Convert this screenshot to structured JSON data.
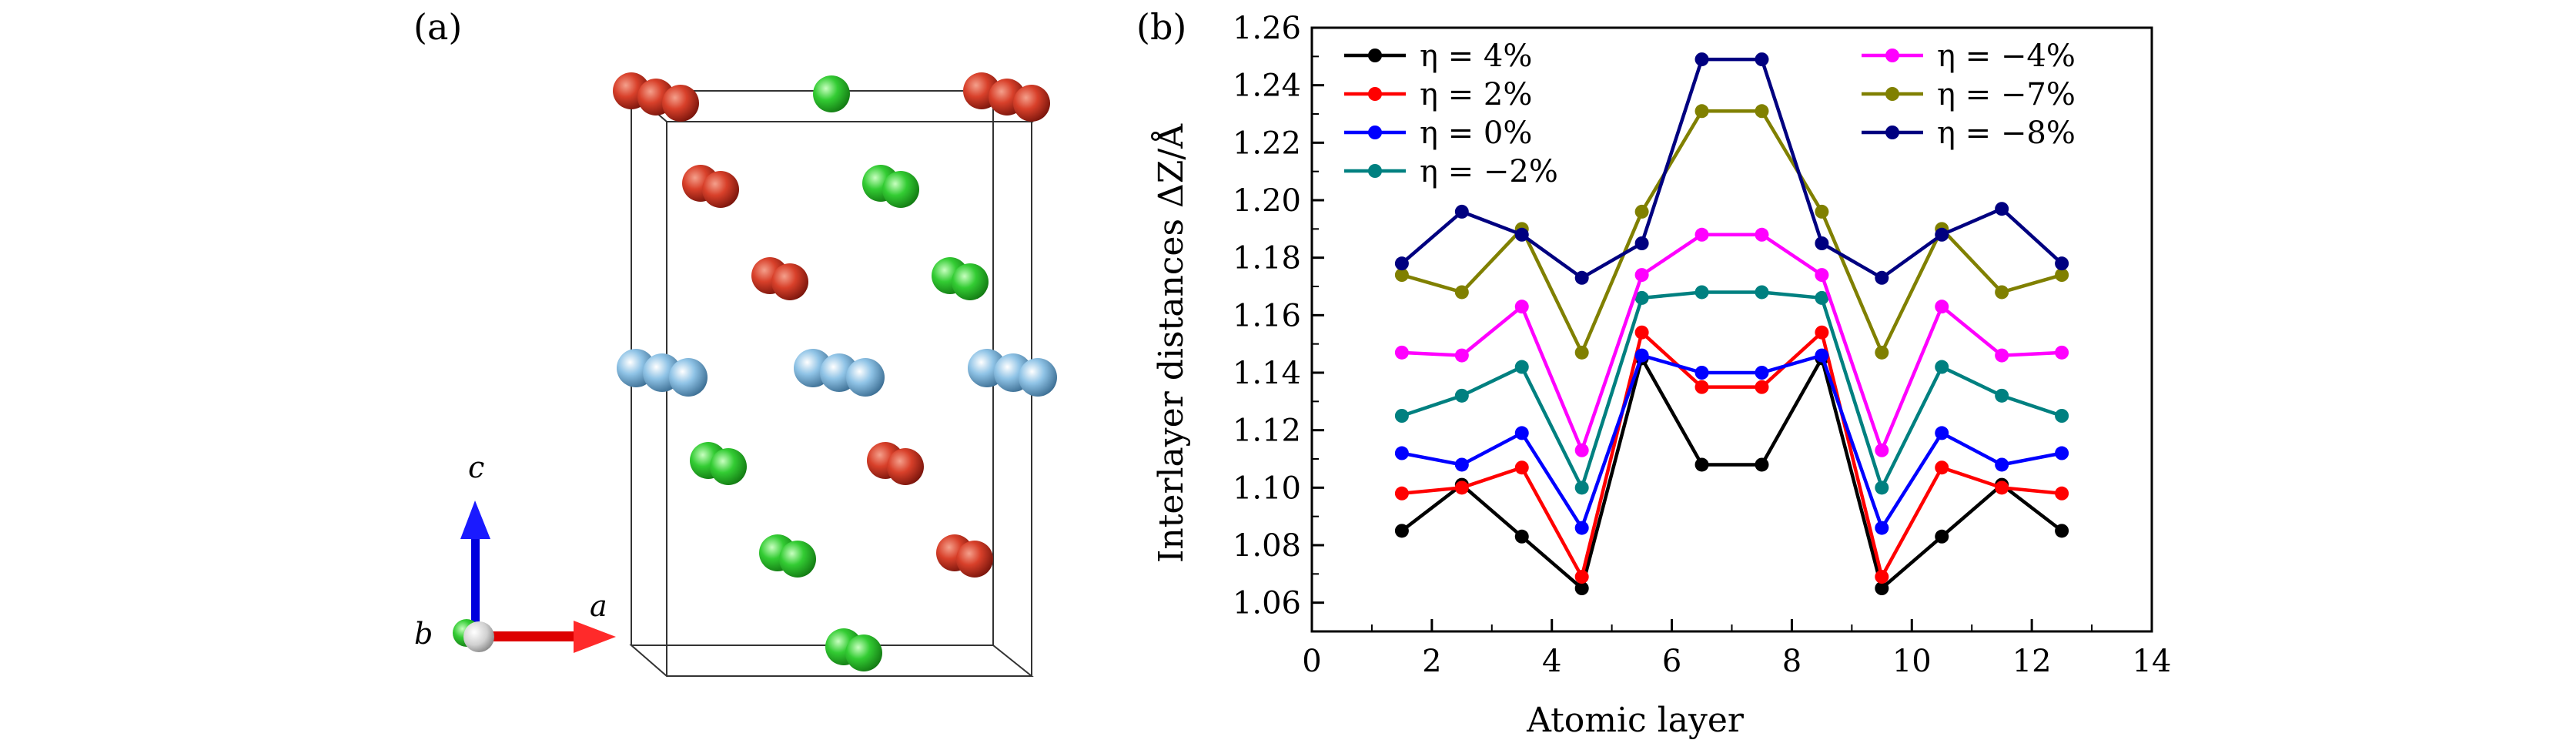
{
  "panel_a": {
    "label": "(a)",
    "axis_labels": {
      "a": "a",
      "b": "b",
      "c": "c"
    }
  },
  "panel_b": {
    "label": "(b)"
  },
  "chart_data": {
    "type": "line",
    "xlabel": "Atomic layer",
    "ylabel": "Interlayer distances ΔZ/Å",
    "xlim": [
      0,
      14
    ],
    "ylim": [
      1.05,
      1.26
    ],
    "xticks": [
      0,
      2,
      4,
      6,
      8,
      10,
      12,
      14
    ],
    "yticks": [
      1.06,
      1.08,
      1.1,
      1.12,
      1.14,
      1.16,
      1.18,
      1.2,
      1.22,
      1.24,
      1.26
    ],
    "grid": false,
    "legend_placement": "top-left and top-right, two columns",
    "x": [
      1.5,
      2.5,
      3.5,
      4.5,
      5.5,
      6.5,
      7.5,
      8.5,
      9.5,
      10.5,
      11.5,
      12.5
    ],
    "series": [
      {
        "name": "η = 4%",
        "color": "#000000",
        "values": [
          1.085,
          1.101,
          1.083,
          1.065,
          1.145,
          1.108,
          1.108,
          1.145,
          1.065,
          1.083,
          1.101,
          1.085
        ]
      },
      {
        "name": "η = 2%",
        "color": "#ff0000",
        "values": [
          1.098,
          1.1,
          1.107,
          1.069,
          1.154,
          1.135,
          1.135,
          1.154,
          1.069,
          1.107,
          1.1,
          1.098
        ]
      },
      {
        "name": "η = 0%",
        "color": "#0000ff",
        "values": [
          1.112,
          1.108,
          1.119,
          1.086,
          1.146,
          1.14,
          1.14,
          1.146,
          1.086,
          1.119,
          1.108,
          1.112
        ]
      },
      {
        "name": "η = −2%",
        "color": "#008080",
        "values": [
          1.125,
          1.132,
          1.142,
          1.1,
          1.166,
          1.168,
          1.168,
          1.166,
          1.1,
          1.142,
          1.132,
          1.125
        ]
      },
      {
        "name": "η = −4%",
        "color": "#ff00ff",
        "values": [
          1.147,
          1.146,
          1.163,
          1.113,
          1.174,
          1.188,
          1.188,
          1.174,
          1.113,
          1.163,
          1.146,
          1.147
        ]
      },
      {
        "name": "η = −7%",
        "color": "#808000",
        "values": [
          1.174,
          1.168,
          1.19,
          1.147,
          1.196,
          1.231,
          1.231,
          1.196,
          1.147,
          1.19,
          1.168,
          1.174
        ]
      },
      {
        "name": "η = −8%",
        "color": "#000080",
        "values": [
          1.178,
          1.196,
          1.188,
          1.173,
          1.185,
          1.249,
          1.249,
          1.185,
          1.173,
          1.188,
          1.197,
          1.178
        ]
      }
    ]
  }
}
